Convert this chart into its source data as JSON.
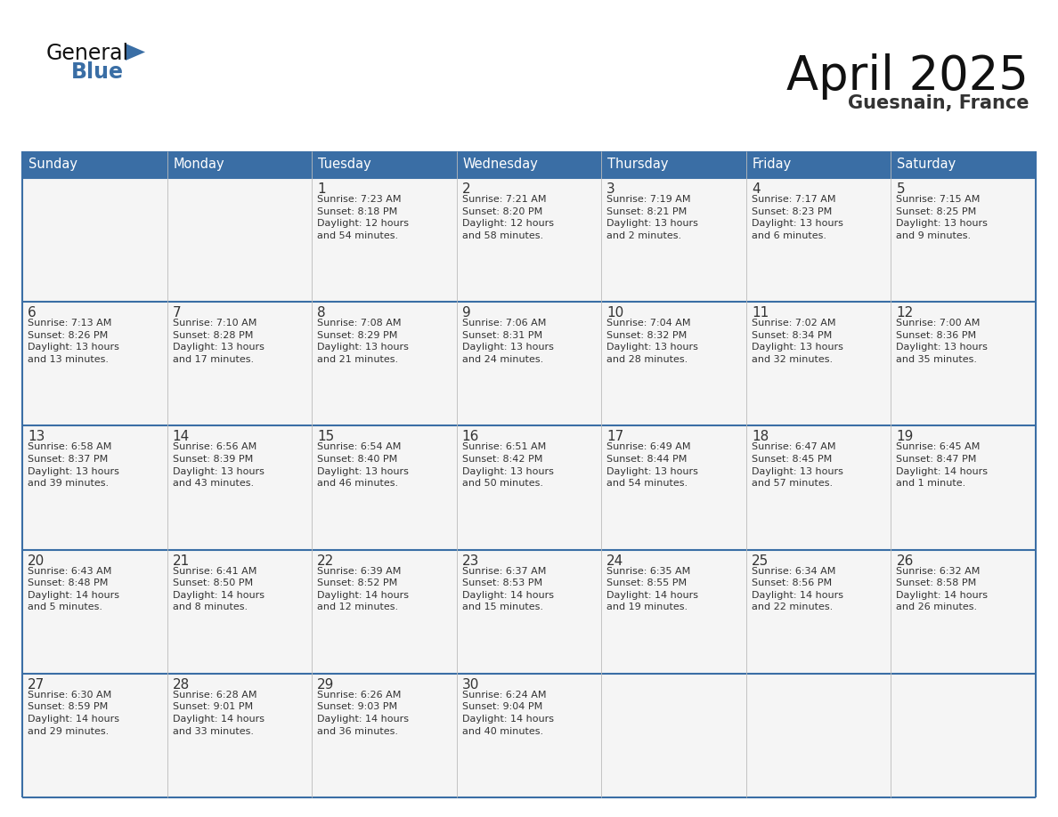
{
  "title": "April 2025",
  "subtitle": "Guesnain, France",
  "header_bg_color": "#3A6EA5",
  "header_text_color": "#FFFFFF",
  "cell_bg_color": "#F5F5F5",
  "border_color": "#3A6EA5",
  "divider_color": "#AAAAAA",
  "text_color": "#333333",
  "day_headers": [
    "Sunday",
    "Monday",
    "Tuesday",
    "Wednesday",
    "Thursday",
    "Friday",
    "Saturday"
  ],
  "weeks": [
    [
      {
        "day": "",
        "text": ""
      },
      {
        "day": "",
        "text": ""
      },
      {
        "day": "1",
        "text": "Sunrise: 7:23 AM\nSunset: 8:18 PM\nDaylight: 12 hours\nand 54 minutes."
      },
      {
        "day": "2",
        "text": "Sunrise: 7:21 AM\nSunset: 8:20 PM\nDaylight: 12 hours\nand 58 minutes."
      },
      {
        "day": "3",
        "text": "Sunrise: 7:19 AM\nSunset: 8:21 PM\nDaylight: 13 hours\nand 2 minutes."
      },
      {
        "day": "4",
        "text": "Sunrise: 7:17 AM\nSunset: 8:23 PM\nDaylight: 13 hours\nand 6 minutes."
      },
      {
        "day": "5",
        "text": "Sunrise: 7:15 AM\nSunset: 8:25 PM\nDaylight: 13 hours\nand 9 minutes."
      }
    ],
    [
      {
        "day": "6",
        "text": "Sunrise: 7:13 AM\nSunset: 8:26 PM\nDaylight: 13 hours\nand 13 minutes."
      },
      {
        "day": "7",
        "text": "Sunrise: 7:10 AM\nSunset: 8:28 PM\nDaylight: 13 hours\nand 17 minutes."
      },
      {
        "day": "8",
        "text": "Sunrise: 7:08 AM\nSunset: 8:29 PM\nDaylight: 13 hours\nand 21 minutes."
      },
      {
        "day": "9",
        "text": "Sunrise: 7:06 AM\nSunset: 8:31 PM\nDaylight: 13 hours\nand 24 minutes."
      },
      {
        "day": "10",
        "text": "Sunrise: 7:04 AM\nSunset: 8:32 PM\nDaylight: 13 hours\nand 28 minutes."
      },
      {
        "day": "11",
        "text": "Sunrise: 7:02 AM\nSunset: 8:34 PM\nDaylight: 13 hours\nand 32 minutes."
      },
      {
        "day": "12",
        "text": "Sunrise: 7:00 AM\nSunset: 8:36 PM\nDaylight: 13 hours\nand 35 minutes."
      }
    ],
    [
      {
        "day": "13",
        "text": "Sunrise: 6:58 AM\nSunset: 8:37 PM\nDaylight: 13 hours\nand 39 minutes."
      },
      {
        "day": "14",
        "text": "Sunrise: 6:56 AM\nSunset: 8:39 PM\nDaylight: 13 hours\nand 43 minutes."
      },
      {
        "day": "15",
        "text": "Sunrise: 6:54 AM\nSunset: 8:40 PM\nDaylight: 13 hours\nand 46 minutes."
      },
      {
        "day": "16",
        "text": "Sunrise: 6:51 AM\nSunset: 8:42 PM\nDaylight: 13 hours\nand 50 minutes."
      },
      {
        "day": "17",
        "text": "Sunrise: 6:49 AM\nSunset: 8:44 PM\nDaylight: 13 hours\nand 54 minutes."
      },
      {
        "day": "18",
        "text": "Sunrise: 6:47 AM\nSunset: 8:45 PM\nDaylight: 13 hours\nand 57 minutes."
      },
      {
        "day": "19",
        "text": "Sunrise: 6:45 AM\nSunset: 8:47 PM\nDaylight: 14 hours\nand 1 minute."
      }
    ],
    [
      {
        "day": "20",
        "text": "Sunrise: 6:43 AM\nSunset: 8:48 PM\nDaylight: 14 hours\nand 5 minutes."
      },
      {
        "day": "21",
        "text": "Sunrise: 6:41 AM\nSunset: 8:50 PM\nDaylight: 14 hours\nand 8 minutes."
      },
      {
        "day": "22",
        "text": "Sunrise: 6:39 AM\nSunset: 8:52 PM\nDaylight: 14 hours\nand 12 minutes."
      },
      {
        "day": "23",
        "text": "Sunrise: 6:37 AM\nSunset: 8:53 PM\nDaylight: 14 hours\nand 15 minutes."
      },
      {
        "day": "24",
        "text": "Sunrise: 6:35 AM\nSunset: 8:55 PM\nDaylight: 14 hours\nand 19 minutes."
      },
      {
        "day": "25",
        "text": "Sunrise: 6:34 AM\nSunset: 8:56 PM\nDaylight: 14 hours\nand 22 minutes."
      },
      {
        "day": "26",
        "text": "Sunrise: 6:32 AM\nSunset: 8:58 PM\nDaylight: 14 hours\nand 26 minutes."
      }
    ],
    [
      {
        "day": "27",
        "text": "Sunrise: 6:30 AM\nSunset: 8:59 PM\nDaylight: 14 hours\nand 29 minutes."
      },
      {
        "day": "28",
        "text": "Sunrise: 6:28 AM\nSunset: 9:01 PM\nDaylight: 14 hours\nand 33 minutes."
      },
      {
        "day": "29",
        "text": "Sunrise: 6:26 AM\nSunset: 9:03 PM\nDaylight: 14 hours\nand 36 minutes."
      },
      {
        "day": "30",
        "text": "Sunrise: 6:24 AM\nSunset: 9:04 PM\nDaylight: 14 hours\nand 40 minutes."
      },
      {
        "day": "",
        "text": ""
      },
      {
        "day": "",
        "text": ""
      },
      {
        "day": "",
        "text": ""
      }
    ]
  ]
}
